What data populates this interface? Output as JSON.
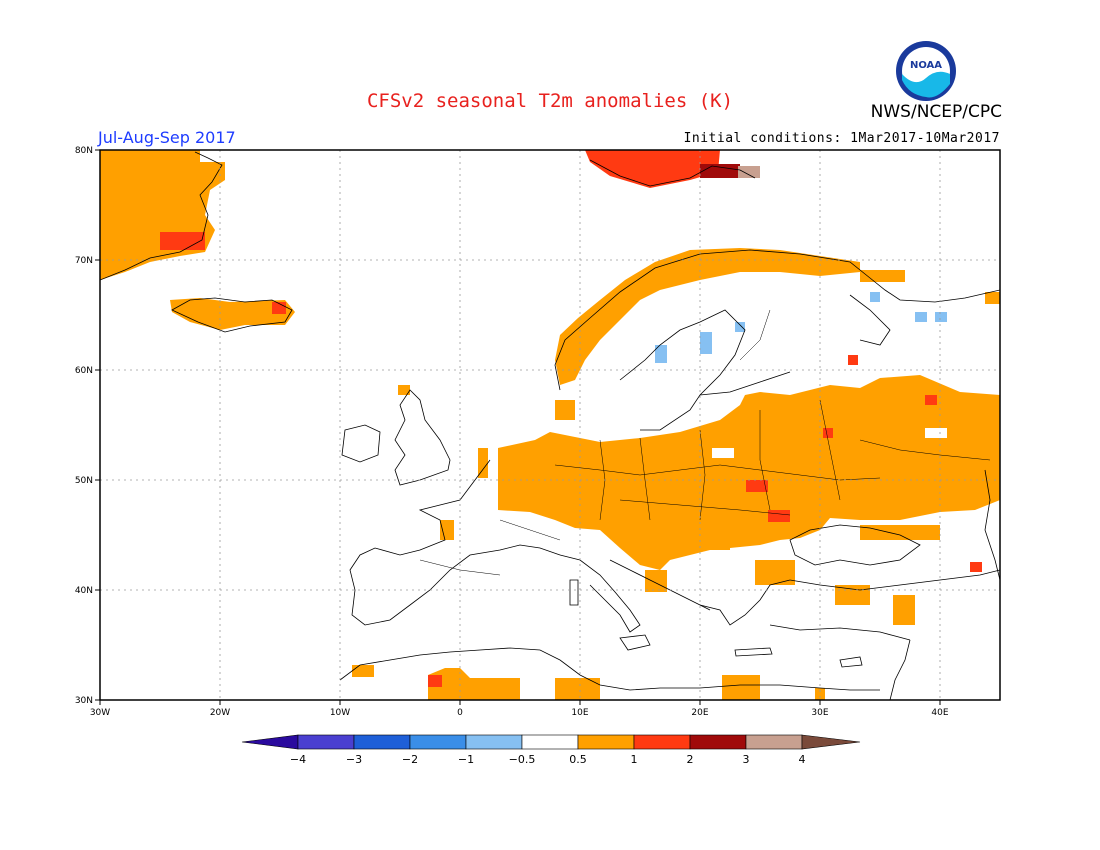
{
  "header": {
    "title": "CFSv2 seasonal T2m anomalies (K)",
    "agency": "NWS/NCEP/CPC",
    "season": "Jul-Aug-Sep 2017",
    "initial_conditions": "Initial conditions: 1Mar2017-10Mar2017",
    "logo_text": "NOAA"
  },
  "axes": {
    "lat_labels": [
      "80N",
      "70N",
      "60N",
      "50N",
      "40N",
      "30N"
    ],
    "lon_labels": [
      "30W",
      "20W",
      "10W",
      "0",
      "10E",
      "20E",
      "30E",
      "40E"
    ]
  },
  "legend": {
    "ticks": [
      "-4",
      "-3",
      "-2",
      "-1",
      "-0.5",
      "0.5",
      "1",
      "2",
      "3",
      "4"
    ],
    "colors": [
      "#2a0a9e",
      "#4a3fd0",
      "#1e5fd8",
      "#3a8ee8",
      "#86c0f2",
      "#ffffff",
      "#ffa000",
      "#ff3a12",
      "#a00a0a",
      "#c8a090",
      "#7a4a3a"
    ]
  },
  "colors": {
    "land_anom_05_1": "#ffa000",
    "land_anom_1_2": "#ff3a12",
    "land_anom_2_3": "#a00a0a",
    "land_anom_3_4": "#c8a090",
    "cold_anom": "#86c0f2",
    "title": "#e8211e",
    "season": "#1e3cff"
  }
}
